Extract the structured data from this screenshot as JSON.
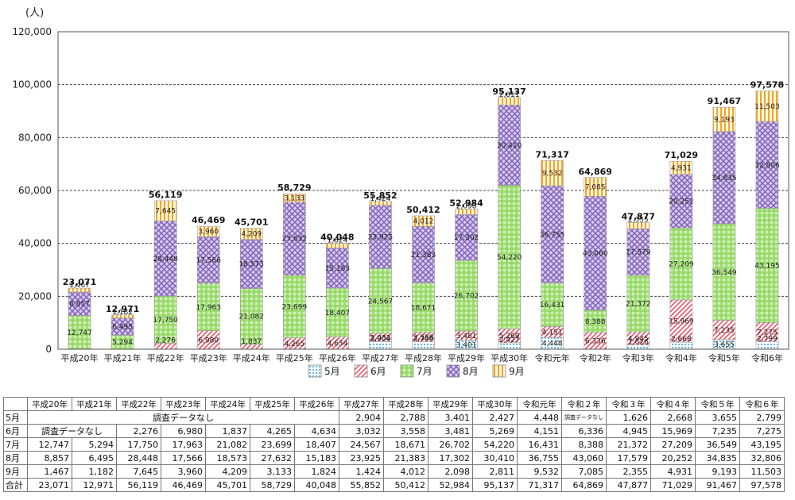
{
  "chart_data": {
    "type": "bar",
    "stacked": true,
    "unit_label": "(人)",
    "categories": [
      "平成20年",
      "平成21年",
      "平成22年",
      "平成23年",
      "平成24年",
      "平成25年",
      "平成26年",
      "平成27年",
      "平成28年",
      "平成29年",
      "平成30年",
      "令和元年",
      "令和2年",
      "令和3年",
      "令和4年",
      "令和5年",
      "令和6年"
    ],
    "ylim": [
      0,
      120000
    ],
    "yticks": [
      "0",
      "20,000",
      "40,000",
      "60,000",
      "80,000",
      "100,000",
      "120,000"
    ],
    "grid": true,
    "legend_position": "bottom",
    "series": [
      {
        "name": "5月",
        "color": "#7fc4ee",
        "pattern": "dots",
        "values": [
          null,
          null,
          null,
          null,
          null,
          null,
          null,
          2904,
          2788,
          3401,
          2427,
          4448,
          null,
          1626,
          2668,
          3655,
          2799
        ],
        "labels": [
          "",
          "",
          "",
          "",
          "",
          "",
          "",
          "2,904",
          "2,788",
          "3,401",
          "2,427",
          "4,448",
          "",
          "1,626",
          "2,668",
          "3,655",
          "2,799"
        ]
      },
      {
        "name": "6月",
        "color": "#e8566a",
        "pattern": "hatch",
        "values": [
          null,
          null,
          2276,
          6980,
          1837,
          4265,
          4634,
          3032,
          3558,
          3481,
          5269,
          4151,
          6336,
          4945,
          15969,
          7235,
          7275
        ],
        "labels": [
          "",
          "",
          "2,276",
          "6,980",
          "1,837",
          "4,265",
          "4,634",
          "3,032",
          "3,558",
          "3,481",
          "5,269",
          "4,151",
          "6,336",
          "4,945",
          "15,969",
          "7,235",
          "7,275"
        ]
      },
      {
        "name": "7月",
        "color": "#7ed14f",
        "pattern": "gingham",
        "values": [
          12747,
          5294,
          17750,
          17963,
          21082,
          23699,
          18407,
          24567,
          18671,
          26702,
          54220,
          16431,
          8388,
          21372,
          27209,
          36549,
          43195
        ],
        "labels": [
          "12,747",
          "5,294",
          "17,750",
          "17,963",
          "21,082",
          "23,699",
          "18,407",
          "24,567",
          "18,671",
          "26,702",
          "54,220",
          "16,431",
          "8,388",
          "21,372",
          "27,209",
          "36,549",
          "43,195"
        ]
      },
      {
        "name": "8月",
        "color": "#9a80c6",
        "pattern": "diamond",
        "values": [
          8857,
          6495,
          28448,
          17566,
          18573,
          27632,
          15183,
          23925,
          21383,
          17302,
          30410,
          36755,
          43060,
          17579,
          20252,
          34835,
          32806
        ],
        "labels": [
          "8,857",
          "6,495",
          "28,448",
          "17,566",
          "18,573",
          "27,632",
          "15,183",
          "23,925",
          "21,383",
          "17,302",
          "30,410",
          "36,755",
          "43,060",
          "17,579",
          "20,252",
          "34,835",
          "32,806"
        ]
      },
      {
        "name": "9月",
        "color": "#f5a623",
        "pattern": "vlines",
        "values": [
          1467,
          1182,
          7645,
          3960,
          4209,
          3133,
          1824,
          1424,
          4012,
          2098,
          2811,
          9532,
          7085,
          2355,
          4931,
          9193,
          11503
        ],
        "labels": [
          "1,467",
          "1,182",
          "7,645",
          "3,960",
          "4,209",
          "3,133",
          "1,824",
          "1,424",
          "4,012",
          "2,098",
          "2,811",
          "9,532",
          "7,085",
          "2,355",
          "4,931",
          "9,193",
          "11,503"
        ]
      }
    ],
    "totals": [
      23071,
      12971,
      56119,
      46469,
      45701,
      58729,
      40048,
      55852,
      50412,
      52984,
      95137,
      71317,
      64869,
      47877,
      71029,
      91467,
      97578
    ],
    "total_labels": [
      "23,071",
      "12,971",
      "56,119",
      "46,469",
      "45,701",
      "58,729",
      "40,048",
      "55,852",
      "50,412",
      "52,984",
      "95,137",
      "71,317",
      "64,869",
      "47,877",
      "71,029",
      "91,467",
      "97,578"
    ]
  },
  "table": {
    "header": [
      "平成20年",
      "平成21年",
      "平成22年",
      "平成23年",
      "平成24年",
      "平成25年",
      "平成26年",
      "平成27年",
      "平成28年",
      "平成29年",
      "平成30年",
      "令和元年",
      "令和２年",
      "令和３年",
      "令和４年",
      "令和５年",
      "令和６年"
    ],
    "rows": [
      {
        "label": "5月",
        "note": "調査データなし",
        "note_span": 7,
        "cells": [
          "",
          "",
          "",
          "",
          "",
          "",
          "",
          "2,904",
          "2,788",
          "3,401",
          "2,427",
          "4,448",
          "調査データなし",
          "1,626",
          "2,668",
          "3,655",
          "2,799"
        ]
      },
      {
        "label": "6月",
        "note": "調査データなし",
        "note_span": 2,
        "cells": [
          "",
          "",
          "2,276",
          "6,980",
          "1,837",
          "4,265",
          "4,634",
          "3,032",
          "3,558",
          "3,481",
          "5,269",
          "4,151",
          "6,336",
          "4,945",
          "15,969",
          "7,235",
          "7,275"
        ]
      },
      {
        "label": "7月",
        "cells": [
          "12,747",
          "5,294",
          "17,750",
          "17,963",
          "21,082",
          "23,699",
          "18,407",
          "24,567",
          "18,671",
          "26,702",
          "54,220",
          "16,431",
          "8,388",
          "21,372",
          "27,209",
          "36,549",
          "43,195"
        ]
      },
      {
        "label": "8月",
        "cells": [
          "8,857",
          "6,495",
          "28,448",
          "17,566",
          "18,573",
          "27,632",
          "15,183",
          "23,925",
          "21,383",
          "17,302",
          "30,410",
          "36,755",
          "43,060",
          "17,579",
          "20,252",
          "34,835",
          "32,806"
        ]
      },
      {
        "label": "9月",
        "cells": [
          "1,467",
          "1,182",
          "7,645",
          "3,960",
          "4,209",
          "3,133",
          "1,824",
          "1,424",
          "4,012",
          "2,098",
          "2,811",
          "9,532",
          "7,085",
          "2,355",
          "4,931",
          "9,193",
          "11,503"
        ]
      },
      {
        "label": "合計",
        "cells": [
          "23,071",
          "12,971",
          "56,119",
          "46,469",
          "45,701",
          "58,729",
          "40,048",
          "55,852",
          "50,412",
          "52,984",
          "95,137",
          "71,317",
          "64,869",
          "47,877",
          "71,029",
          "91,467",
          "97,578"
        ]
      }
    ]
  }
}
